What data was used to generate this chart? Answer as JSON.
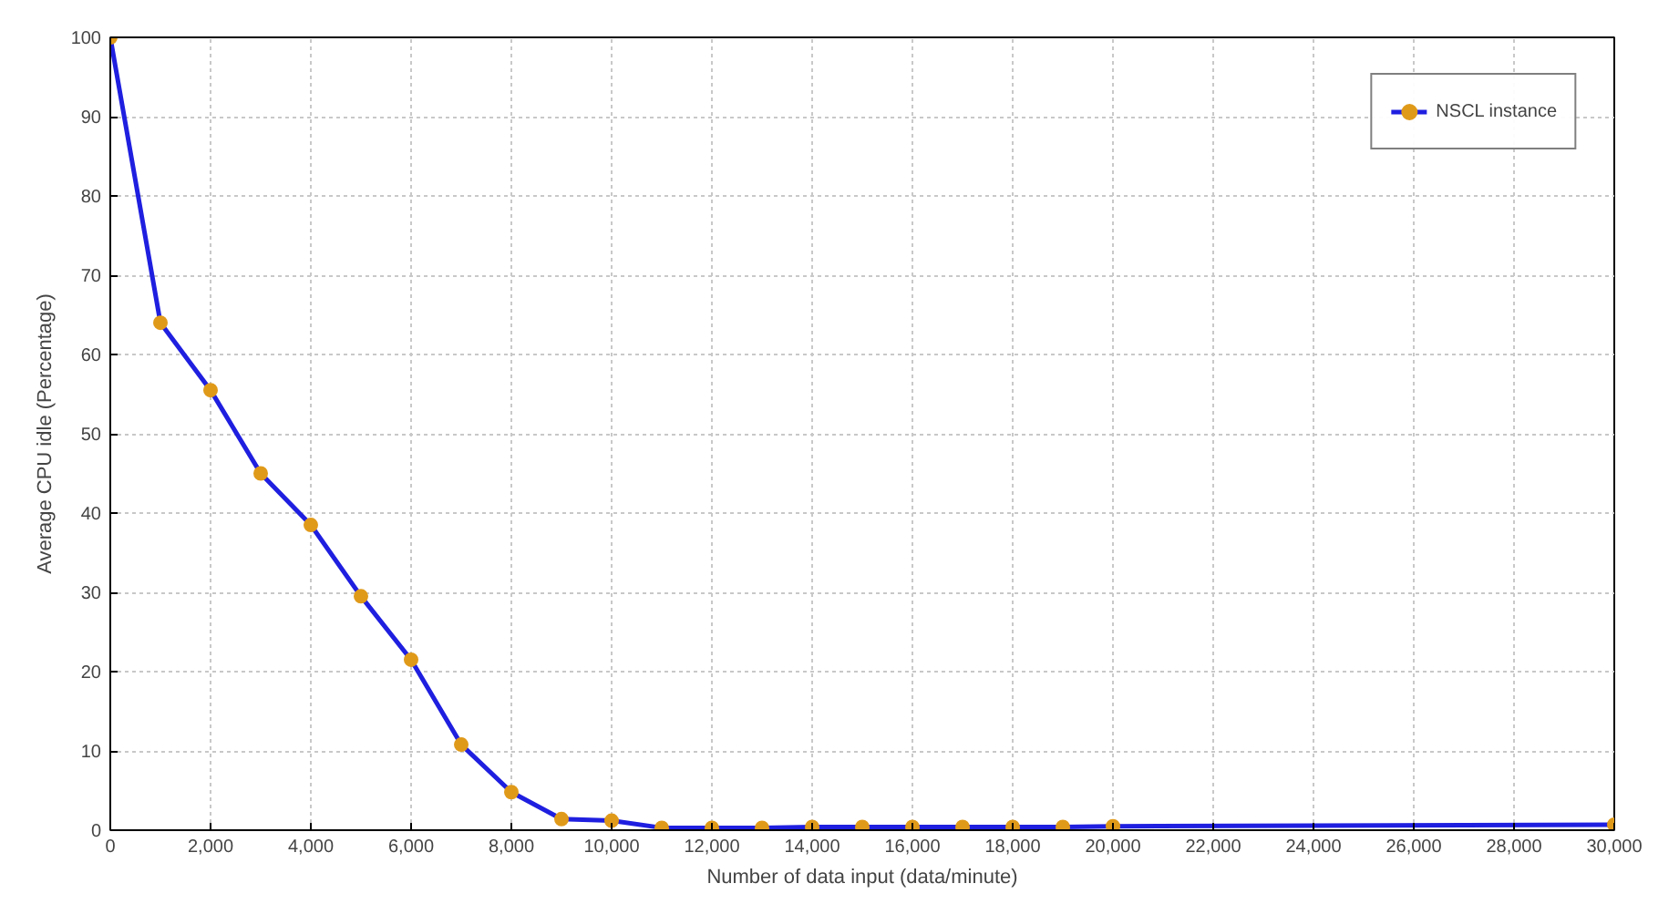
{
  "chart_data": {
    "type": "line",
    "xlabel": "Number of data input (data/minute)",
    "ylabel": "Average CPU idle (Percentage)",
    "x": [
      0,
      1000,
      2000,
      3000,
      4000,
      5000,
      6000,
      7000,
      8000,
      9000,
      10000,
      11000,
      12000,
      13000,
      14000,
      15000,
      16000,
      17000,
      18000,
      19000,
      20000,
      30000
    ],
    "series": [
      {
        "name": "NSCL instance",
        "color": "#1f1fe0",
        "colors": [
          "#e09a1a",
          "#e09a1a",
          "#e09a1a",
          "#e09a1a",
          "#e09a1a",
          "#e09a1a",
          "#e09a1a",
          "#e09a1a",
          "#e09a1a",
          "#e09a1a",
          "#e09a1a",
          "#e09a1a",
          "#e09a1a",
          "#e09a1a",
          "#e09a1a",
          "#e09a1a",
          "#e09a1a",
          "#e09a1a",
          "#e09a1a",
          "#e09a1a",
          "#e09a1a",
          "#e09a1a"
        ],
        "values": [
          100,
          64,
          55.5,
          45,
          38.5,
          29.5,
          21.5,
          10.8,
          4.8,
          1.4,
          1.2,
          0.3,
          0.3,
          0.3,
          0.4,
          0.4,
          0.4,
          0.4,
          0.4,
          0.4,
          0.5,
          0.7
        ]
      }
    ],
    "xlim": [
      0,
      30000
    ],
    "ylim": [
      0,
      100
    ],
    "xticks": [
      0,
      {
        "value": 2000,
        "label": "2,000"
      },
      {
        "value": 4000,
        "label": "4,000"
      },
      {
        "value": 6000,
        "label": "6,000"
      },
      {
        "value": 8000,
        "label": "8,000"
      },
      {
        "value": 10000,
        "label": "10,000"
      },
      {
        "value": 12000,
        "label": "12,000"
      },
      {
        "value": 14000,
        "label": "14,000"
      },
      {
        "value": 16000,
        "label": "16,000"
      },
      {
        "value": 18000,
        "label": "18,000"
      },
      {
        "value": 20000,
        "label": "20,000"
      },
      {
        "value": 22000,
        "label": "22,000"
      },
      {
        "value": 24000,
        "label": "24,000"
      },
      {
        "value": 26000,
        "label": "26,000"
      },
      {
        "value": 28000,
        "label": "28,000"
      },
      {
        "value": 30000,
        "label": "30,000"
      }
    ],
    "yticks": [
      0,
      10,
      20,
      30,
      40,
      50,
      60,
      70,
      80,
      90,
      100
    ],
    "grid": true,
    "legend": "top right",
    "marker": "circle",
    "line_style": "solid"
  }
}
